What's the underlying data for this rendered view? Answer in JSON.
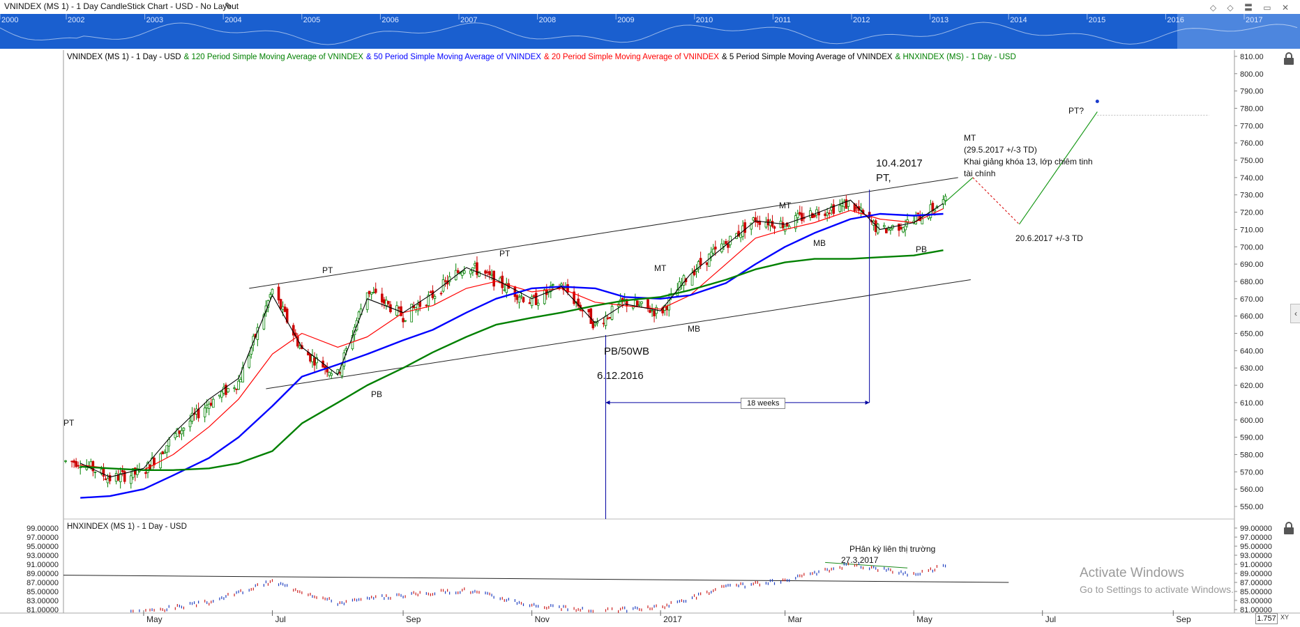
{
  "window": {
    "title": "VNINDEX (MS 1) - 1 Day CandleStick Chart - USD - No Layout",
    "controls": "◇ ◇ 〓 ▭ ✕"
  },
  "navigator": {
    "years": [
      "2000",
      "2002",
      "2003",
      "2004",
      "2005",
      "2006",
      "2007",
      "2008",
      "2009",
      "2010",
      "2011",
      "2012",
      "2013",
      "2014",
      "2015",
      "2016",
      "2017"
    ]
  },
  "legend": [
    {
      "text": "VNINDEX (MS 1) - 1 Day - USD",
      "color": "#000000"
    },
    {
      "text": "& 120 Period Simple Moving Average of VNINDEX",
      "color": "#008000"
    },
    {
      "text": "& 50 Period Simple Moving Average of VNINDEX",
      "color": "#0000ff"
    },
    {
      "text": "& 20 Period Simple Moving Average of VNINDEX",
      "color": "#ff0000"
    },
    {
      "text": "& 5 Period Simple Moving Average of VNINDEX",
      "color": "#000000"
    },
    {
      "text": "& HNXINDEX (MS) - 1 Day - USD",
      "color": "#008000"
    }
  ],
  "hnx_title": "HNXINDEX (MS 1) - 1 Day - USD",
  "annotations": {
    "pt_left": "PT",
    "pt1": "PT",
    "pb1": "PB",
    "pt2": "PT",
    "mt1": "MT",
    "pb_50wb": "PB/50WB",
    "date_pb": "6.12.2016",
    "mb1": "MB",
    "mt2": "MT",
    "mb2": "MB",
    "date_pt": "10.4.2017",
    "pt3": "PT,",
    "pb2": "PB",
    "weeks": "18 weeks",
    "mt_future": "MT",
    "mt_date": "(29.5.2017 +/-3 TD)",
    "mt_note1": "Khai giảng khóa 13, lớp chiêm tinh",
    "mt_note2": "tài chính",
    "pb_future_date": "20.6.2017 +/-3 TD",
    "pt_future": "PT?",
    "divergence": "PHân kỳ liên thị trường",
    "div_date": "27.3.2017"
  },
  "watermark": {
    "line1": "Activate Windows",
    "line2": "Go to Settings to activate Windows."
  },
  "zoom": "1.757",
  "xy_label": "XY",
  "colors": {
    "sma120": "#008000",
    "sma50": "#0000ff",
    "sma20": "#ff0000",
    "sma5": "#000000",
    "up": "#008000",
    "down": "#cc0000",
    "navigator": "#1560d0"
  },
  "chart_data": [
    {
      "type": "line",
      "title": "VNINDEX (MS 1) - 1 Day - USD",
      "x_ticks": [
        "May",
        "Jul",
        "Sep",
        "Nov",
        "2017",
        "Mar",
        "May",
        "Jul",
        "Sep"
      ],
      "y_ticks": [
        550,
        560,
        570,
        580,
        590,
        600,
        610,
        620,
        630,
        640,
        650,
        660,
        670,
        680,
        690,
        700,
        710,
        720,
        730,
        740,
        750,
        760,
        770,
        780,
        790,
        800,
        810
      ],
      "ylim": [
        545,
        812
      ],
      "x": [
        "2016-04-01",
        "2016-04-15",
        "2016-05-01",
        "2016-05-15",
        "2016-06-01",
        "2016-06-15",
        "2016-07-01",
        "2016-07-15",
        "2016-08-01",
        "2016-08-15",
        "2016-09-01",
        "2016-09-15",
        "2016-10-01",
        "2016-10-15",
        "2016-11-01",
        "2016-11-15",
        "2016-12-01",
        "2016-12-15",
        "2017-01-01",
        "2017-01-15",
        "2017-02-01",
        "2017-02-15",
        "2017-03-01",
        "2017-03-15",
        "2017-04-01",
        "2017-04-15",
        "2017-05-01",
        "2017-05-15"
      ],
      "series": [
        {
          "name": "VNINDEX",
          "values": [
            576,
            566,
            570,
            590,
            610,
            622,
            675,
            640,
            626,
            675,
            660,
            672,
            690,
            680,
            668,
            678,
            655,
            668,
            662,
            685,
            702,
            716,
            713,
            720,
            725,
            709,
            715,
            726
          ]
        },
        {
          "name": "20 Period Simple Moving Average of VNINDEX",
          "values": [
            574,
            572,
            571,
            580,
            596,
            612,
            638,
            650,
            642,
            648,
            662,
            666,
            676,
            680,
            674,
            676,
            668,
            666,
            664,
            672,
            690,
            705,
            710,
            714,
            721,
            716,
            714,
            722
          ]
        },
        {
          "name": "50 Period Simple Moving Average of VNINDEX",
          "values": [
            555,
            556,
            560,
            568,
            578,
            590,
            608,
            625,
            632,
            638,
            646,
            652,
            662,
            670,
            676,
            677,
            676,
            671,
            670,
            672,
            679,
            690,
            700,
            708,
            716,
            719,
            718,
            719
          ]
        },
        {
          "name": "120 Period Simple Moving Average of VNINDEX",
          "values": [
            573,
            572,
            571,
            571,
            572,
            575,
            582,
            598,
            610,
            620,
            630,
            639,
            648,
            655,
            659,
            662,
            666,
            669,
            671,
            675,
            681,
            687,
            691,
            693,
            693,
            694,
            695,
            698
          ]
        },
        {
          "name": "5 Period Simple Moving Average of VNINDEX",
          "values": [
            575,
            567,
            572,
            592,
            612,
            624,
            672,
            642,
            626,
            670,
            662,
            673,
            688,
            681,
            670,
            677,
            656,
            667,
            663,
            684,
            701,
            715,
            713,
            719,
            727,
            710,
            714,
            725
          ]
        }
      ]
    },
    {
      "type": "line",
      "title": "HNXINDEX (MS 1) - 1 Day - USD",
      "y_ticks": [
        81,
        83,
        85,
        87,
        89,
        91,
        93,
        95,
        97,
        99
      ],
      "ylim": [
        80.6,
        100
      ],
      "x": [
        "2016-04-01",
        "2016-05-01",
        "2016-06-01",
        "2016-07-01",
        "2016-08-01",
        "2016-09-01",
        "2016-10-01",
        "2016-11-01",
        "2016-12-01",
        "2017-01-01",
        "2017-02-01",
        "2017-03-01",
        "2017-04-01",
        "2017-05-01",
        "2017-05-15"
      ],
      "series": [
        {
          "name": "HNXINDEX",
          "values": [
            79.5,
            80.5,
            82.6,
            87.2,
            82.5,
            84.2,
            85.3,
            82.0,
            80.6,
            81.5,
            86.0,
            87.3,
            91.0,
            88.8,
            90.5
          ]
        }
      ]
    }
  ]
}
